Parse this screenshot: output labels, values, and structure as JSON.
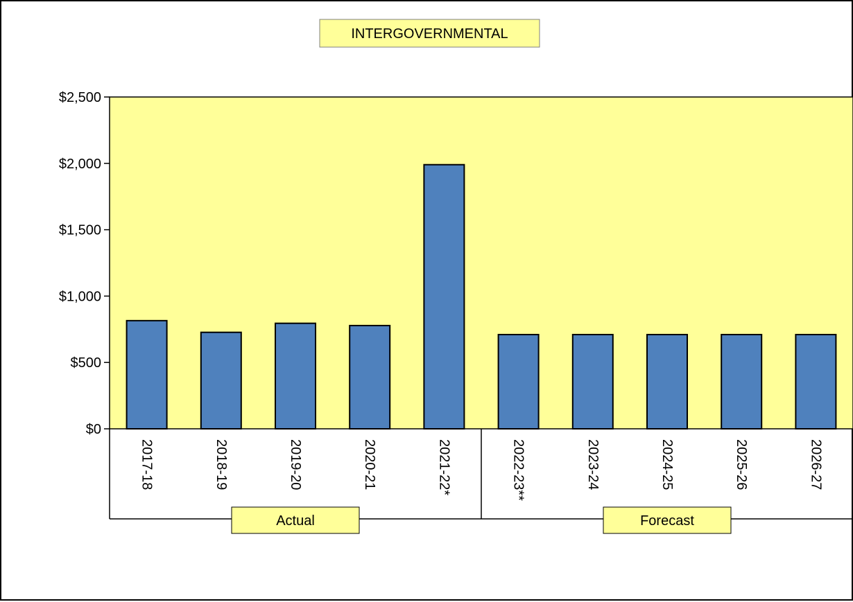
{
  "chart_data": {
    "type": "bar",
    "title": "INTERGOVERNMENTAL",
    "categories": [
      "2017-18",
      "2018-19",
      "2019-20",
      "2020-21",
      "2021-22*",
      "2022-23**",
      "2023-24",
      "2024-25",
      "2025-26",
      "2026-27"
    ],
    "values": [
      815,
      727,
      795,
      778,
      1990,
      710,
      710,
      710,
      710,
      710
    ],
    "ylim": [
      0,
      2500
    ],
    "yticks": [
      0,
      500,
      1000,
      1500,
      2000,
      2500
    ],
    "ytick_labels": [
      "$0",
      "$500",
      "$1,000",
      "$1,500",
      "$2,000",
      "$2,500"
    ],
    "groups": [
      {
        "label": "Actual",
        "categories": [
          "2017-18",
          "2018-19",
          "2019-20",
          "2020-21",
          "2021-22*"
        ]
      },
      {
        "label": "Forecast",
        "categories": [
          "2022-23**",
          "2023-24",
          "2024-25",
          "2025-26",
          "2026-27"
        ]
      }
    ],
    "grid": false,
    "legend": "none",
    "colors": {
      "bar": "#4f81bd",
      "plot_background": "#ffff99",
      "label_box": "#ffff99"
    }
  }
}
